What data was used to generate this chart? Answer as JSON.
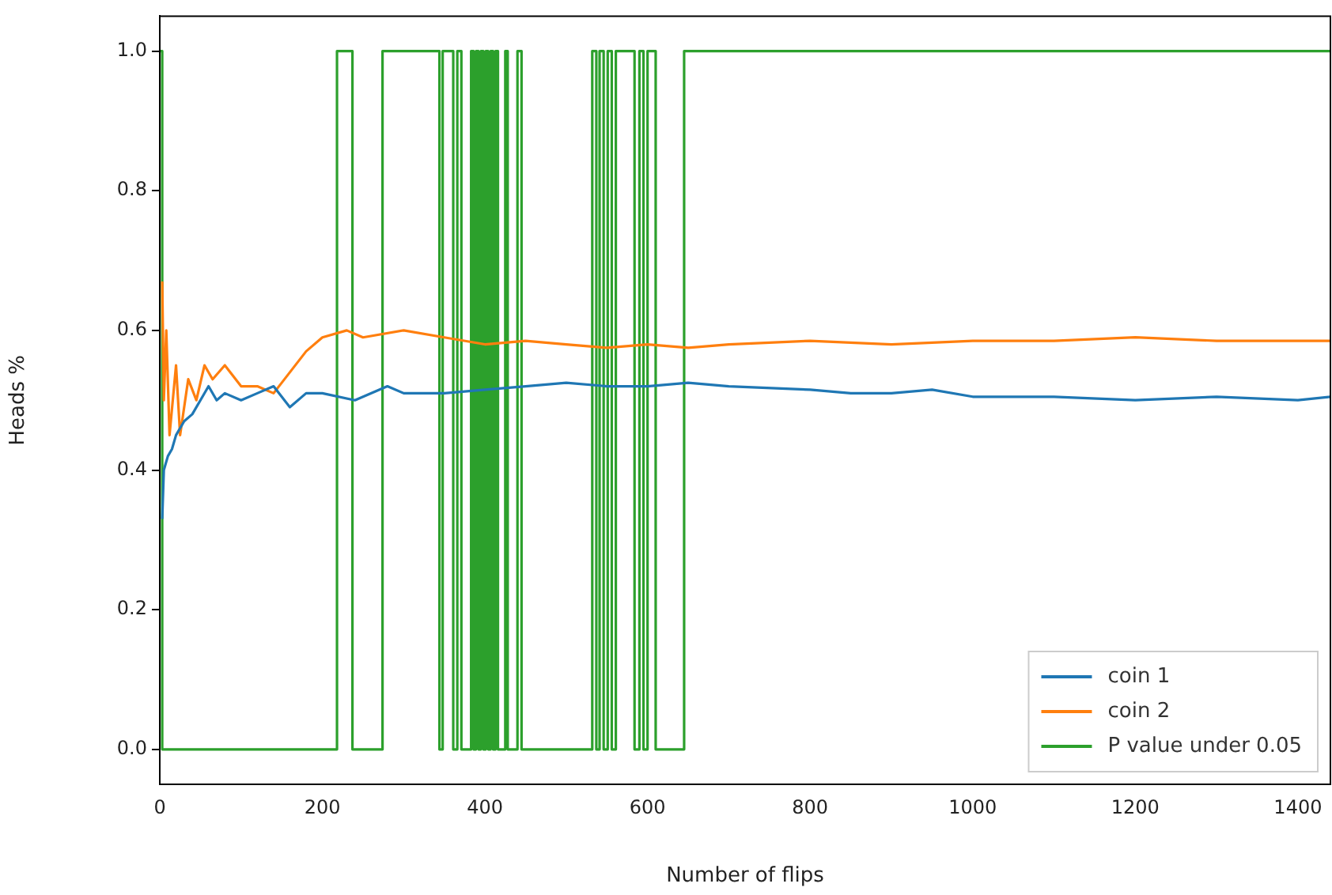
{
  "chart_data": {
    "type": "line",
    "xlabel": "Number of flips",
    "ylabel": "Heads %",
    "xlim": [
      0,
      1440
    ],
    "xticks": [
      0,
      200,
      400,
      600,
      800,
      1000,
      1200,
      1400
    ],
    "ylim": [
      -0.05,
      1.05
    ],
    "yticks": [
      {
        "value": 0,
        "label": "0.0"
      },
      {
        "value": 0.2,
        "label": "0.2"
      },
      {
        "value": 0.4,
        "label": "0.4"
      },
      {
        "value": 0.6,
        "label": "0.6"
      },
      {
        "value": 0.8,
        "label": "0.8"
      },
      {
        "value": 1,
        "label": "1.0"
      }
    ],
    "grid": false,
    "legend": "bottom right",
    "marker": "none",
    "line_style": "solid",
    "series": [
      {
        "name": "coin 1",
        "color": "#1f77b4",
        "x": [
          3,
          5,
          10,
          15,
          20,
          30,
          40,
          50,
          60,
          70,
          80,
          100,
          120,
          140,
          160,
          180,
          200,
          240,
          280,
          300,
          350,
          400,
          450,
          500,
          550,
          600,
          650,
          700,
          800,
          850,
          900,
          950,
          1000,
          1100,
          1200,
          1300,
          1400,
          1440
        ],
        "values": [
          0.33,
          0.4,
          0.42,
          0.43,
          0.45,
          0.47,
          0.48,
          0.5,
          0.52,
          0.5,
          0.51,
          0.5,
          0.51,
          0.52,
          0.49,
          0.51,
          0.51,
          0.5,
          0.52,
          0.51,
          0.51,
          0.515,
          0.52,
          0.525,
          0.52,
          0.52,
          0.525,
          0.52,
          0.515,
          0.51,
          0.51,
          0.515,
          0.505,
          0.505,
          0.5,
          0.505,
          0.5,
          0.505
        ]
      },
      {
        "name": "coin 2",
        "color": "#ff7f0e",
        "x": [
          3,
          5,
          8,
          12,
          20,
          25,
          35,
          45,
          55,
          65,
          80,
          100,
          120,
          140,
          160,
          180,
          200,
          230,
          250,
          300,
          350,
          400,
          450,
          500,
          550,
          600,
          650,
          700,
          800,
          900,
          1000,
          1100,
          1200,
          1300,
          1400,
          1440
        ],
        "values": [
          0.67,
          0.5,
          0.6,
          0.45,
          0.55,
          0.45,
          0.53,
          0.5,
          0.55,
          0.53,
          0.55,
          0.52,
          0.52,
          0.51,
          0.54,
          0.57,
          0.59,
          0.6,
          0.59,
          0.6,
          0.59,
          0.58,
          0.585,
          0.58,
          0.575,
          0.58,
          0.575,
          0.58,
          0.585,
          0.58,
          0.585,
          0.585,
          0.59,
          0.585,
          0.585,
          0.585
        ]
      },
      {
        "name": "P value under 0.05",
        "type": "step",
        "color": "#2ca02c",
        "x": [
          0,
          3,
          218,
          237,
          274,
          344,
          348,
          361,
          366,
          371,
          383,
          386,
          389,
          392,
          395,
          398,
          401,
          404,
          407,
          410,
          413,
          416,
          425,
          428,
          440,
          445,
          532,
          537,
          541,
          546,
          551,
          556,
          561,
          584,
          590,
          595,
          600,
          610,
          645,
          1440
        ],
        "values": [
          1,
          0,
          1,
          0,
          1,
          0,
          1,
          0,
          1,
          0,
          1,
          0,
          1,
          0,
          1,
          0,
          1,
          0,
          1,
          0,
          1,
          0,
          1,
          0,
          1,
          0,
          1,
          0,
          1,
          0,
          1,
          0,
          1,
          0,
          1,
          0,
          1,
          0,
          1,
          1
        ]
      }
    ]
  }
}
